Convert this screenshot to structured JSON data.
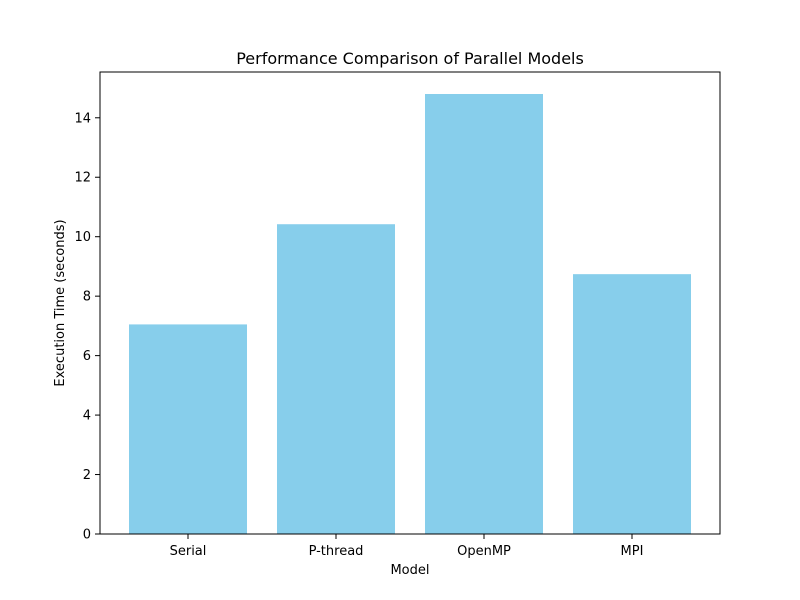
{
  "chart_data": {
    "type": "bar",
    "title": "Performance Comparison of Parallel Models",
    "xlabel": "Model",
    "ylabel": "Execution Time (seconds)",
    "categories": [
      "Serial",
      "P-thread",
      "OpenMP",
      "MPI"
    ],
    "values": [
      7.05,
      10.42,
      14.8,
      8.74
    ],
    "ylim": [
      0,
      15.54
    ],
    "yticks": [
      0,
      2,
      4,
      6,
      8,
      10,
      12,
      14
    ],
    "grid": false,
    "bar_color": "#87CEEB"
  }
}
